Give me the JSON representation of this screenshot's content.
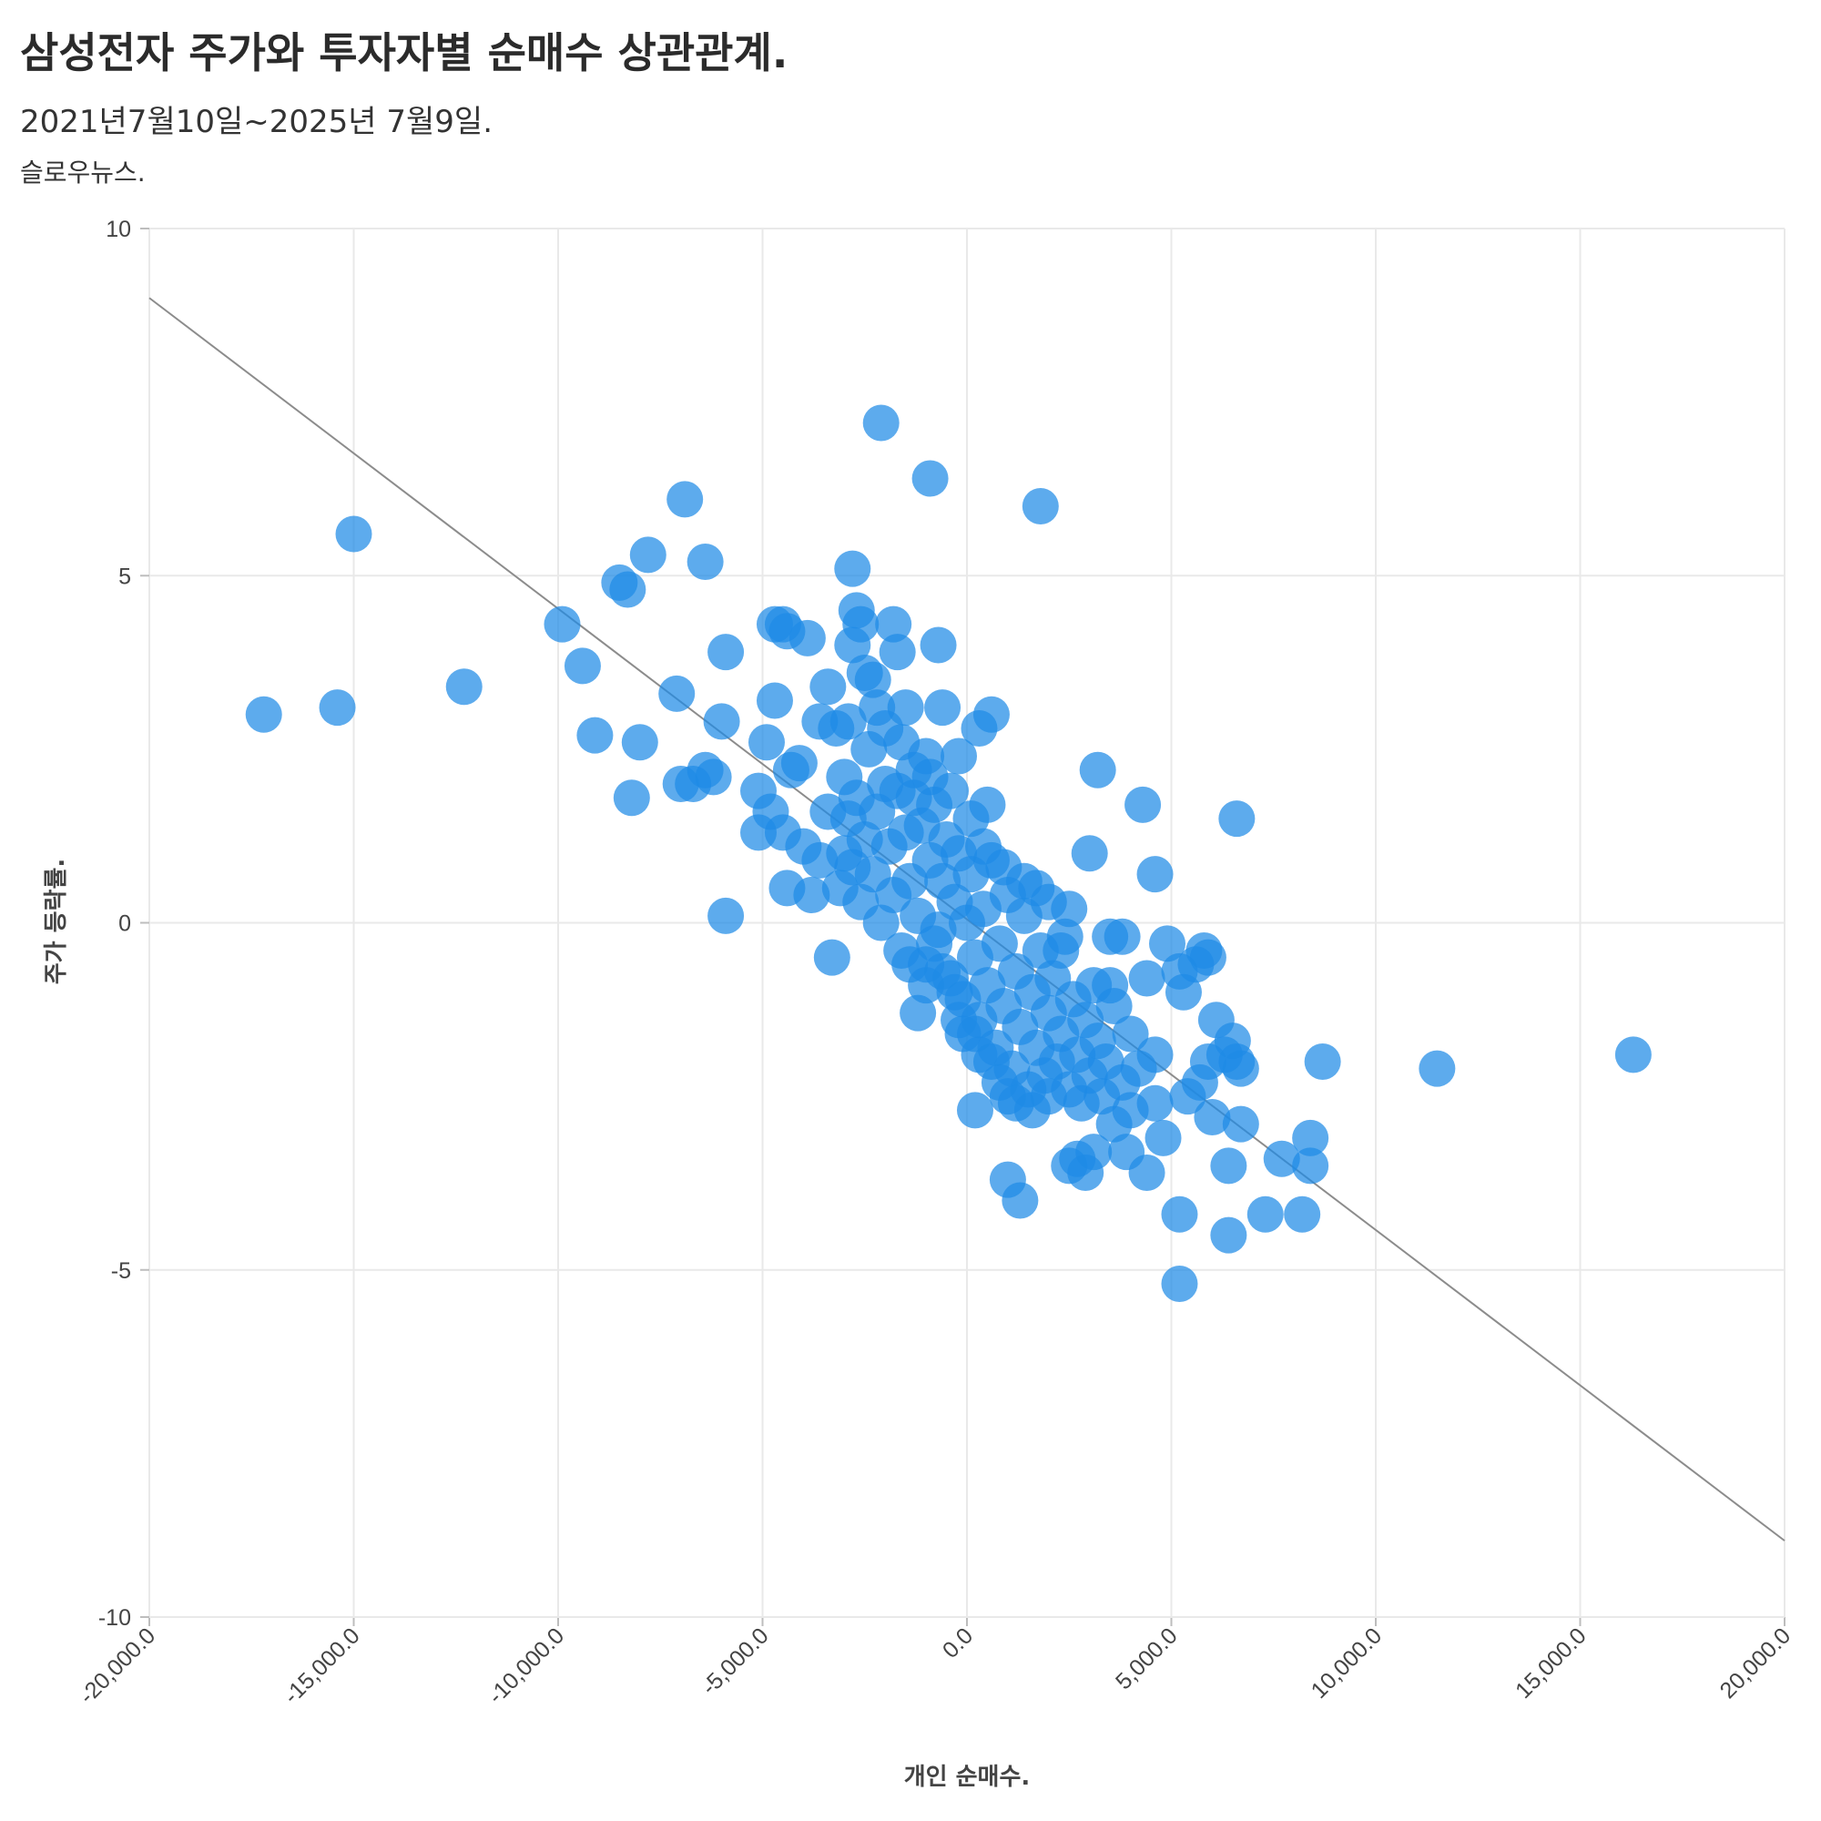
{
  "header": {
    "title": "삼성전자 주가와 투자자별 순매수 상관관계.",
    "subtitle": "2021년7월10일~2025년 7월9일.",
    "source": "슬로우뉴스."
  },
  "chart_data": {
    "type": "scatter",
    "title": "삼성전자 주가와 투자자별 순매수 상관관계.",
    "subtitle": "2021년7월10일~2025년 7월9일.",
    "xlabel": "개인 순매수.",
    "ylabel": "주가 등락률.",
    "xlim": [
      -20000,
      20000
    ],
    "ylim": [
      -10,
      10
    ],
    "x_ticks": [
      -20000,
      -15000,
      -10000,
      -5000,
      0,
      5000,
      10000,
      15000,
      20000
    ],
    "x_tick_labels": [
      "-20,000.0",
      "-15,000.0",
      "-10,000.0",
      "-5,000.0",
      "0.0",
      "5,000.0",
      "10,000.0",
      "15,000.0",
      "20,000.0"
    ],
    "y_ticks": [
      10,
      5,
      0,
      -5,
      -10
    ],
    "y_tick_labels": [
      "10",
      "5",
      "0",
      "-5",
      "-10"
    ],
    "grid": true,
    "point_color": "#1f8be6",
    "trend_color": "#8c8c8c",
    "trendline": {
      "x": [
        -20000,
        20000
      ],
      "y": [
        9.0,
        -8.9
      ]
    },
    "series": [
      {
        "points": [
          [
            -17200,
            3.0
          ],
          [
            -15400,
            3.1
          ],
          [
            -15000,
            5.6
          ],
          [
            -12300,
            3.4
          ],
          [
            -9900,
            4.3
          ],
          [
            -9400,
            3.7
          ],
          [
            -9100,
            2.7
          ],
          [
            -8500,
            4.9
          ],
          [
            -8300,
            4.8
          ],
          [
            -8200,
            1.8
          ],
          [
            -8000,
            2.6
          ],
          [
            -7800,
            5.3
          ],
          [
            -7100,
            3.3
          ],
          [
            -6900,
            6.1
          ],
          [
            -7000,
            2.0
          ],
          [
            -6700,
            2.0
          ],
          [
            -6400,
            5.2
          ],
          [
            -6400,
            2.2
          ],
          [
            -6200,
            2.1
          ],
          [
            -6000,
            2.9
          ],
          [
            -5900,
            3.9
          ],
          [
            -5900,
            0.1
          ],
          [
            -5100,
            1.9
          ],
          [
            -5100,
            1.3
          ],
          [
            -4900,
            2.6
          ],
          [
            -4800,
            1.6
          ],
          [
            -4700,
            3.2
          ],
          [
            -4700,
            4.3
          ],
          [
            -4500,
            4.3
          ],
          [
            -4400,
            4.2
          ],
          [
            -4500,
            1.3
          ],
          [
            -4400,
            0.5
          ],
          [
            -4300,
            2.2
          ],
          [
            -4100,
            2.3
          ],
          [
            -4000,
            1.1
          ],
          [
            -3900,
            4.1
          ],
          [
            -3800,
            0.4
          ],
          [
            -3600,
            2.9
          ],
          [
            -3400,
            3.4
          ],
          [
            -3300,
            -0.5
          ],
          [
            -3000,
            2.1
          ],
          [
            -2800,
            5.1
          ],
          [
            -2800,
            4.0
          ],
          [
            -2700,
            4.5
          ],
          [
            -2600,
            4.3
          ],
          [
            -2500,
            3.6
          ],
          [
            -2300,
            3.5
          ],
          [
            -2200,
            3.1
          ],
          [
            -2100,
            7.2
          ],
          [
            -1800,
            4.3
          ],
          [
            -1700,
            3.9
          ],
          [
            -1500,
            3.1
          ],
          [
            -1200,
            -1.3
          ],
          [
            -1000,
            2.4
          ],
          [
            -900,
            6.4
          ],
          [
            -700,
            4.0
          ],
          [
            -600,
            3.1
          ],
          [
            -200,
            2.4
          ],
          [
            300,
            2.8
          ],
          [
            500,
            1.7
          ],
          [
            600,
            3.0
          ],
          [
            1800,
            6.0
          ],
          [
            3000,
            1.0
          ],
          [
            3200,
            2.2
          ],
          [
            3500,
            -0.2
          ],
          [
            3800,
            -0.2
          ],
          [
            4300,
            1.7
          ],
          [
            4600,
            0.7
          ],
          [
            4900,
            -0.3
          ],
          [
            5200,
            -0.7
          ],
          [
            5300,
            -1.0
          ],
          [
            5600,
            -0.6
          ],
          [
            5800,
            -0.4
          ],
          [
            5900,
            -0.5
          ],
          [
            6100,
            -1.4
          ],
          [
            6300,
            -1.9
          ],
          [
            6500,
            -1.7
          ],
          [
            6600,
            1.5
          ],
          [
            6600,
            -2.0
          ],
          [
            6700,
            -2.1
          ],
          [
            6700,
            -2.9
          ],
          [
            6400,
            -3.5
          ],
          [
            6400,
            -4.5
          ],
          [
            7300,
            -4.2
          ],
          [
            7700,
            -3.4
          ],
          [
            8200,
            -4.2
          ],
          [
            8400,
            -3.1
          ],
          [
            8400,
            -3.5
          ],
          [
            8700,
            -2.0
          ],
          [
            5200,
            -4.2
          ],
          [
            5200,
            -5.2
          ],
          [
            5400,
            -2.5
          ],
          [
            5700,
            -2.3
          ],
          [
            6000,
            -2.8
          ],
          [
            5900,
            -2.0
          ],
          [
            4800,
            -3.1
          ],
          [
            4600,
            -2.6
          ],
          [
            4400,
            -3.6
          ],
          [
            4000,
            -2.7
          ],
          [
            3900,
            -3.3
          ],
          [
            3600,
            -2.9
          ],
          [
            3300,
            -2.5
          ],
          [
            3100,
            -3.3
          ],
          [
            2900,
            -3.6
          ],
          [
            2700,
            -3.4
          ],
          [
            2500,
            -3.5
          ],
          [
            1000,
            -3.7
          ],
          [
            1300,
            -4.0
          ],
          [
            200,
            -2.7
          ],
          [
            11500,
            -2.1
          ],
          [
            16300,
            -1.9
          ],
          [
            -3000,
            1.0
          ],
          [
            -3100,
            0.5
          ],
          [
            -2900,
            1.5
          ],
          [
            -2800,
            0.8
          ],
          [
            -2700,
            1.8
          ],
          [
            -2600,
            0.3
          ],
          [
            -2500,
            1.2
          ],
          [
            -2400,
            2.5
          ],
          [
            -2300,
            0.7
          ],
          [
            -2200,
            1.6
          ],
          [
            -2100,
            0.0
          ],
          [
            -2000,
            2.0
          ],
          [
            -1900,
            1.1
          ],
          [
            -1800,
            0.4
          ],
          [
            -1700,
            1.9
          ],
          [
            -1600,
            -0.4
          ],
          [
            -1500,
            1.3
          ],
          [
            -1400,
            0.6
          ],
          [
            -1300,
            2.2
          ],
          [
            -1200,
            0.1
          ],
          [
            -1100,
            1.4
          ],
          [
            -1000,
            -0.6
          ],
          [
            -900,
            0.9
          ],
          [
            -800,
            1.7
          ],
          [
            -700,
            -0.1
          ],
          [
            -600,
            0.6
          ],
          [
            -500,
            1.2
          ],
          [
            -400,
            -0.8
          ],
          [
            -300,
            0.3
          ],
          [
            -200,
            1.0
          ],
          [
            -100,
            -1.1
          ],
          [
            0,
            0.0
          ],
          [
            100,
            0.7
          ],
          [
            200,
            -0.5
          ],
          [
            300,
            -1.4
          ],
          [
            400,
            0.2
          ],
          [
            500,
            -0.9
          ],
          [
            600,
            0.9
          ],
          [
            700,
            -1.8
          ],
          [
            800,
            -0.3
          ],
          [
            900,
            -1.2
          ],
          [
            1000,
            0.4
          ],
          [
            1100,
            -2.1
          ],
          [
            1200,
            -0.7
          ],
          [
            1300,
            -1.5
          ],
          [
            1400,
            0.1
          ],
          [
            1500,
            -2.4
          ],
          [
            1600,
            -1.0
          ],
          [
            1700,
            -1.8
          ],
          [
            1800,
            -0.4
          ],
          [
            1900,
            -2.2
          ],
          [
            2000,
            -1.3
          ],
          [
            2100,
            -0.8
          ],
          [
            2200,
            -2.0
          ],
          [
            2300,
            -1.6
          ],
          [
            2400,
            -0.2
          ],
          [
            2500,
            -2.4
          ],
          [
            2600,
            -1.1
          ],
          [
            2700,
            -1.9
          ],
          [
            2800,
            -2.6
          ],
          [
            2900,
            -1.4
          ],
          [
            3000,
            -2.2
          ],
          [
            3200,
            -1.7
          ],
          [
            3400,
            -2.0
          ],
          [
            3600,
            -1.2
          ],
          [
            3800,
            -2.3
          ],
          [
            4000,
            -1.6
          ],
          [
            4200,
            -2.1
          ],
          [
            4400,
            -0.8
          ],
          [
            4600,
            -1.9
          ],
          [
            -3400,
            1.6
          ],
          [
            -3600,
            0.9
          ],
          [
            -3200,
            2.8
          ],
          [
            -2900,
            2.9
          ],
          [
            -2000,
            2.8
          ],
          [
            -1600,
            2.6
          ],
          [
            -1300,
            1.8
          ],
          [
            -900,
            2.1
          ],
          [
            -400,
            1.9
          ],
          [
            100,
            1.5
          ],
          [
            400,
            1.1
          ],
          [
            900,
            0.8
          ],
          [
            1400,
            0.6
          ],
          [
            2000,
            0.3
          ],
          [
            2500,
            0.2
          ],
          [
            -1000,
            -0.9
          ],
          [
            -600,
            -0.7
          ],
          [
            -300,
            -1.0
          ],
          [
            200,
            -1.6
          ],
          [
            600,
            -2.0
          ],
          [
            800,
            -2.3
          ],
          [
            1000,
            -2.5
          ],
          [
            1200,
            -2.6
          ],
          [
            1600,
            -2.7
          ],
          [
            2000,
            -2.5
          ],
          [
            -200,
            -1.4
          ],
          [
            -100,
            -1.6
          ],
          [
            300,
            -1.9
          ],
          [
            -1400,
            -0.6
          ],
          [
            -800,
            -0.3
          ],
          [
            1700,
            0.5
          ],
          [
            2300,
            -0.4
          ],
          [
            3100,
            -0.9
          ],
          [
            3500,
            -0.9
          ]
        ]
      }
    ]
  }
}
